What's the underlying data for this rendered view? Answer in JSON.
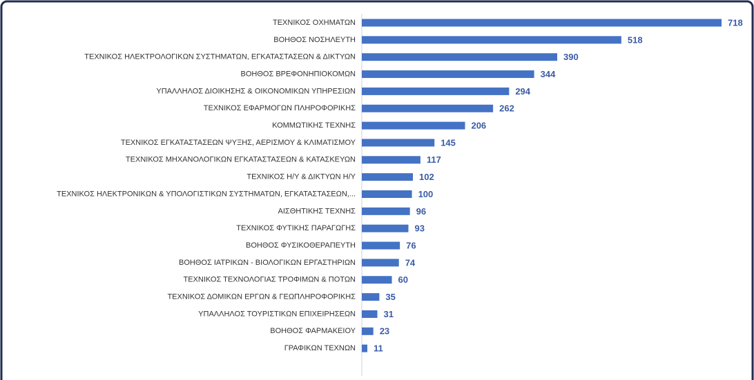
{
  "chart_data": {
    "type": "bar",
    "orientation": "horizontal",
    "color": "#4472c4",
    "categories": [
      "ΤΕΧΝΙΚΟΣ ΟΧΗΜΑΤΩΝ",
      "ΒΟΗΘΟΣ ΝΟΣΗΛΕΥΤΗ",
      "ΤΕΧΝΙΚΟΣ ΗΛΕΚΤΡΟΛΟΓΙΚΩΝ ΣΥΣΤΗΜΑΤΩΝ, ΕΓΚΑΤΑΣΤΑΣΕΩΝ & ΔΙΚΤΥΩΝ",
      "ΒΟΗΘΟΣ ΒΡΕΦΟΝΗΠΙΟΚΟΜΩΝ",
      "ΥΠΑΛΛΗΛΟΣ ΔΙΟΙΚΗΣΗΣ & ΟΙΚΟΝΟΜΙΚΩΝ ΥΠΗΡΕΣΙΩΝ",
      "ΤΕΧΝΙΚΟΣ ΕΦΑΡΜΟΓΩΝ ΠΛΗΡΟΦΟΡΙΚΗΣ",
      "ΚΟΜΜΩΤΙΚΗΣ ΤΕΧΝΗΣ",
      "ΤΕΧΝΙΚΟΣ ΕΓΚΑΤΑΣΤΑΣΕΩΝ ΨΥΞΗΣ, ΑΕΡΙΣΜΟΥ & ΚΛΙΜΑΤΙΣΜΟΥ",
      "ΤΕΧΝΙΚΟΣ ΜΗΧΑΝΟΛΟΓΙΚΩΝ ΕΓΚΑΤΑΣΤΑΣΕΩΝ & ΚΑΤΑΣΚΕΥΩΝ",
      "ΤΕΧΝΙΚΟΣ Η/Υ & ΔΙΚΤΥΩΝ Η/Υ",
      "ΤΕΧΝΙΚΟΣ ΗΛΕΚΤΡΟΝΙΚΩΝ & ΥΠΟΛΟΓΙΣΤΙΚΩΝ ΣΥΣΤΗΜΑΤΩΝ, ΕΓΚΑΤΑΣΤΑΣΕΩΝ,...",
      "ΑΙΣΘΗΤΙΚΗΣ ΤΕΧΝΗΣ",
      "ΤΕΧΝΙΚΟΣ ΦΥΤΙΚΗΣ ΠΑΡΑΓΩΓΗΣ",
      "ΒΟΗΘΟΣ ΦΥΣΙΚΟΘΕΡΑΠΕΥΤΗ",
      "ΒΟΗΘΟΣ ΙΑΤΡΙΚΩΝ - ΒΙΟΛΟΓΙΚΩΝ ΕΡΓΑΣΤΗΡΙΩΝ",
      "ΤΕΧΝΙΚΟΣ ΤΕΧΝΟΛΟΓΙΑΣ ΤΡΟΦΙΜΩΝ & ΠΟΤΩΝ",
      "ΤΕΧΝΙΚΟΣ ΔΟΜΙΚΩΝ ΕΡΓΩΝ & ΓΕΩΠΛΗΡΟΦΟΡΙΚΗΣ",
      "ΥΠΑΛΛΗΛΟΣ ΤΟΥΡΙΣΤΙΚΩΝ ΕΠΙΧΕΙΡΗΣΕΩΝ",
      "ΒΟΗΘΟΣ ΦΑΡΜΑΚΕΙΟΥ",
      "ΓΡΑΦΙΚΩΝ ΤΕΧΝΩΝ"
    ],
    "values": [
      718,
      518,
      390,
      344,
      294,
      262,
      206,
      145,
      117,
      102,
      100,
      96,
      93,
      76,
      74,
      60,
      35,
      31,
      23,
      11
    ]
  }
}
